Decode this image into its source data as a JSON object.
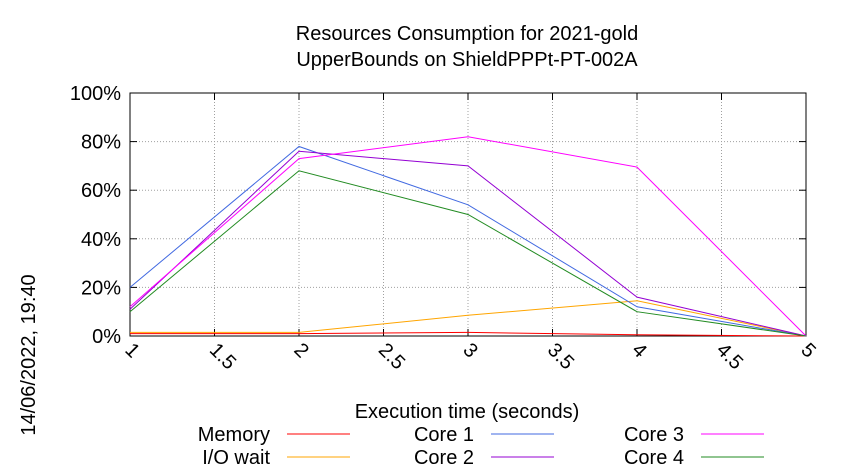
{
  "chart_data": {
    "type": "line",
    "title_line1": "Resources Consumption for 2021-gold",
    "title_line2": "UpperBounds on ShieldPPPt-PT-002A",
    "xlabel": "Execution time (seconds)",
    "ylabel": "",
    "side_label": "14/06/2022, 19:40",
    "xlim": [
      1,
      5
    ],
    "ylim": [
      0,
      100
    ],
    "grid": true,
    "legend_position": "bottom",
    "x_ticks": [
      "1",
      "1.5",
      "2",
      "2.5",
      "3",
      "3.5",
      "4",
      "4.5",
      "5"
    ],
    "y_ticks": [
      "0%",
      "20%",
      "40%",
      "60%",
      "80%",
      "100%"
    ],
    "series": [
      {
        "name": "Memory",
        "color": "#ff0000",
        "x": [
          1,
          2,
          3,
          4,
          5
        ],
        "y": [
          1,
          1,
          1.5,
          0.5,
          0
        ]
      },
      {
        "name": "I/O wait",
        "color": "#ffa500",
        "x": [
          1,
          2,
          3,
          4,
          5
        ],
        "y": [
          1.5,
          1.5,
          8.5,
          14.5,
          0
        ]
      },
      {
        "name": "Core 1",
        "color": "#4169e1",
        "x": [
          1,
          2,
          3,
          4,
          5
        ],
        "y": [
          20,
          78,
          54,
          12,
          0
        ]
      },
      {
        "name": "Core 2",
        "color": "#9400d3",
        "x": [
          1,
          2,
          3,
          4,
          5
        ],
        "y": [
          11,
          76,
          70,
          16,
          0
        ]
      },
      {
        "name": "Core 3",
        "color": "#ff00ff",
        "x": [
          1,
          2,
          3,
          4,
          5
        ],
        "y": [
          12,
          73,
          82,
          69.5,
          0
        ]
      },
      {
        "name": "Core 4",
        "color": "#228b22",
        "x": [
          1,
          2,
          3,
          4,
          5
        ],
        "y": [
          10,
          68,
          50,
          10,
          0
        ]
      }
    ]
  }
}
